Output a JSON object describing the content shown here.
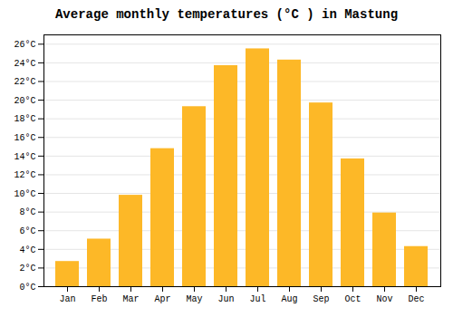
{
  "chart_data": {
    "type": "bar",
    "title": "Average monthly temperatures (°C ) in Mastung",
    "categories": [
      "Jan",
      "Feb",
      "Mar",
      "Apr",
      "May",
      "Jun",
      "Jul",
      "Aug",
      "Sep",
      "Oct",
      "Nov",
      "Dec"
    ],
    "values": [
      2.7,
      5.1,
      9.8,
      14.8,
      19.3,
      23.7,
      25.5,
      24.3,
      19.7,
      13.7,
      7.9,
      4.3
    ],
    "color": "#FDB827",
    "ylim": [
      0,
      27
    ],
    "yticks": [
      {
        "value": 0,
        "label": "0°C"
      },
      {
        "value": 2,
        "label": "2°C"
      },
      {
        "value": 4,
        "label": "4°C"
      },
      {
        "value": 6,
        "label": "6°C"
      },
      {
        "value": 8,
        "label": "8°C"
      },
      {
        "value": 10,
        "label": "10°C"
      },
      {
        "value": 12,
        "label": "12°C"
      },
      {
        "value": 14,
        "label": "14°C"
      },
      {
        "value": 16,
        "label": "16°C"
      },
      {
        "value": 18,
        "label": "18°C"
      },
      {
        "value": 20,
        "label": "20°C"
      },
      {
        "value": 22,
        "label": "22°C"
      },
      {
        "value": 24,
        "label": "24°C"
      },
      {
        "value": 26,
        "label": "26°C"
      }
    ],
    "grid": true
  }
}
